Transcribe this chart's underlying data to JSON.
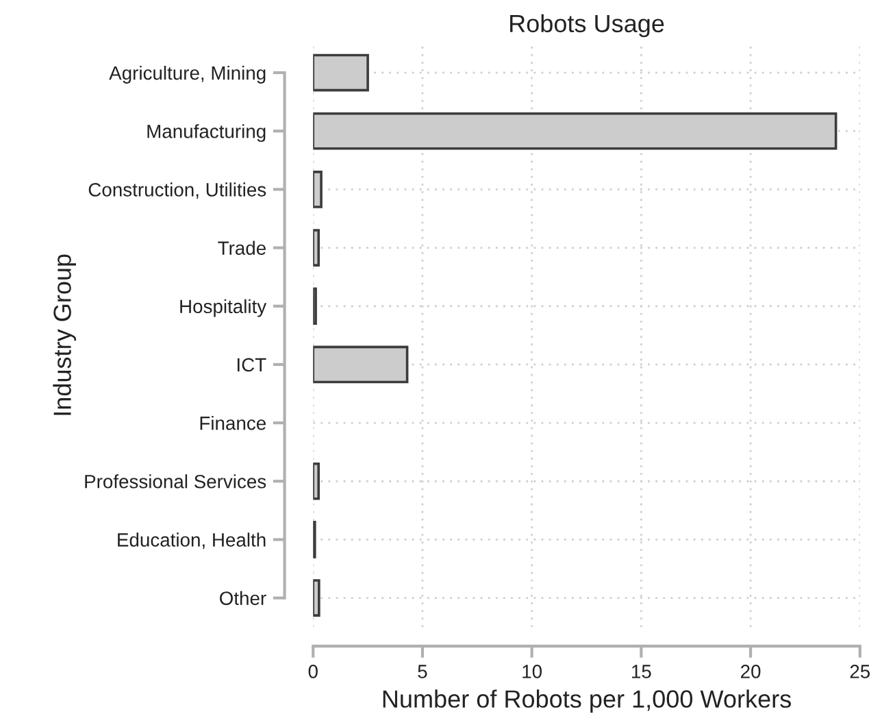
{
  "chart_data": {
    "type": "bar",
    "orientation": "horizontal",
    "title": "Robots Usage",
    "xlabel": "Number of Robots per 1,000 Workers",
    "ylabel": "Industry Group",
    "categories": [
      "Agriculture, Mining",
      "Manufacturing",
      "Construction, Utilities",
      "Trade",
      "Hospitality",
      "ICT",
      "Finance",
      "Professional Services",
      "Education, Health",
      "Other"
    ],
    "values": [
      2.5,
      23.9,
      0.37,
      0.25,
      0.12,
      4.3,
      0,
      0.25,
      0.08,
      0.27
    ],
    "color": "#cccccc",
    "xlim": [
      0,
      25
    ],
    "xticks": [
      0,
      5,
      10,
      15,
      20,
      25
    ],
    "grid": true
  }
}
